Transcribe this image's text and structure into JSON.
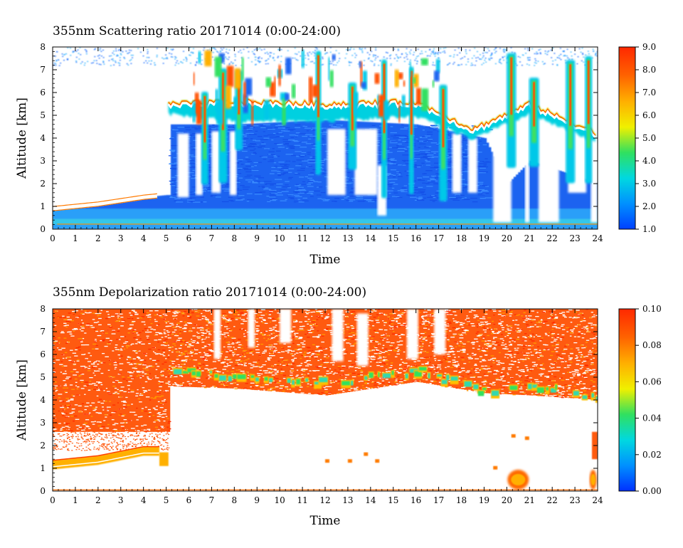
{
  "figure": {
    "panels": [
      {
        "title": "355nm Scattering ratio  20171014 (0:00-24:00)",
        "xlabel": "Time",
        "ylabel": "Altitude [km]",
        "x_ticks": [
          "0",
          "1",
          "2",
          "3",
          "4",
          "5",
          "6",
          "7",
          "8",
          "9",
          "10",
          "11",
          "12",
          "13",
          "14",
          "15",
          "16",
          "17",
          "18",
          "19",
          "20",
          "21",
          "22",
          "23",
          "24"
        ],
        "y_ticks": [
          "0",
          "1",
          "2",
          "3",
          "4",
          "5",
          "6",
          "7",
          "8"
        ],
        "colorbar": {
          "ticks": [
            "1.0",
            "2.0",
            "3.0",
            "4.0",
            "5.0",
            "6.0",
            "7.0",
            "8.0",
            "9.0"
          ],
          "min": 1.0,
          "max": 9.0
        }
      },
      {
        "title": "355nm Depolarization ratio  20171014 (0:00-24:00)",
        "xlabel": "Time",
        "ylabel": "Altitude [km]",
        "x_ticks": [
          "0",
          "1",
          "2",
          "3",
          "4",
          "5",
          "6",
          "7",
          "8",
          "9",
          "10",
          "11",
          "12",
          "13",
          "14",
          "15",
          "16",
          "17",
          "18",
          "19",
          "20",
          "21",
          "22",
          "23",
          "24"
        ],
        "y_ticks": [
          "0",
          "1",
          "2",
          "3",
          "4",
          "5",
          "6",
          "7",
          "8"
        ],
        "colorbar": {
          "ticks": [
            "0.00",
            "0.02",
            "0.04",
            "0.06",
            "0.08",
            "0.10"
          ],
          "min": 0.0,
          "max": 0.1
        }
      }
    ]
  },
  "chart_data": [
    {
      "type": "heatmap",
      "quantity": "355nm Scattering ratio",
      "date": "20171014",
      "x": {
        "unit": "hour",
        "range": [
          0,
          24
        ]
      },
      "y": {
        "unit": "km",
        "range": [
          0,
          8
        ]
      },
      "color_range": [
        1.0,
        9.0
      ],
      "colormap": [
        "#0040ff",
        "#0090ff",
        "#00d8e0",
        "#30e060",
        "#f0f000",
        "#ffb000",
        "#ff6000",
        "#ff2800"
      ],
      "features": {
        "boundary_layer_top_km": [
          [
            0,
            0.9
          ],
          [
            2,
            1.1
          ],
          [
            4,
            1.4
          ],
          [
            5,
            1.5
          ],
          [
            5.2,
            0.6
          ]
        ],
        "cirrus_base_km": [
          [
            5.1,
            5.3
          ],
          [
            8,
            5.0
          ],
          [
            12,
            5.0
          ],
          [
            16,
            5.2
          ],
          [
            18.5,
            4.2
          ],
          [
            21,
            5.3
          ],
          [
            24,
            4.0
          ]
        ],
        "cirrus_top_km": [
          [
            5.1,
            5.5
          ],
          [
            8,
            5.6
          ],
          [
            12,
            5.5
          ],
          [
            16,
            5.6
          ],
          [
            18.5,
            4.4
          ],
          [
            21,
            5.5
          ],
          [
            24,
            4.2
          ]
        ],
        "columns_hours": [
          6.7,
          7.5,
          8.2,
          11.7,
          13.2,
          14.6,
          15.8,
          17.2,
          20.2,
          21.2,
          22.8,
          23.6
        ]
      }
    },
    {
      "type": "heatmap",
      "quantity": "355nm Depolarization ratio",
      "date": "20171014",
      "x": {
        "unit": "hour",
        "range": [
          0,
          24
        ]
      },
      "y": {
        "unit": "km",
        "range": [
          0,
          8
        ]
      },
      "color_range": [
        0.0,
        0.1
      ],
      "colormap": [
        "#0030ff",
        "#0090ff",
        "#00d8e0",
        "#30e060",
        "#f0f000",
        "#ffb000",
        "#ff6000",
        "#ff2800"
      ],
      "features": {
        "noisy_high_depol_region": [
          [
            0,
            2.6
          ],
          [
            5.1,
            2.6
          ],
          [
            5.1,
            4.6
          ],
          [
            24,
            4.0
          ]
        ],
        "aerosol_layer_km": [
          [
            0,
            1.0
          ],
          [
            2,
            1.2
          ],
          [
            4,
            1.6
          ],
          [
            5,
            1.6
          ]
        ],
        "cloud_layer_km": [
          [
            5.3,
            5.2
          ],
          [
            8,
            5.0
          ],
          [
            12,
            4.7
          ],
          [
            16,
            5.2
          ],
          [
            19,
            4.3
          ],
          [
            21,
            4.6
          ],
          [
            24,
            4.0
          ]
        ],
        "surface_patches_hours": [
          20.5,
          23.8
        ]
      }
    }
  ]
}
